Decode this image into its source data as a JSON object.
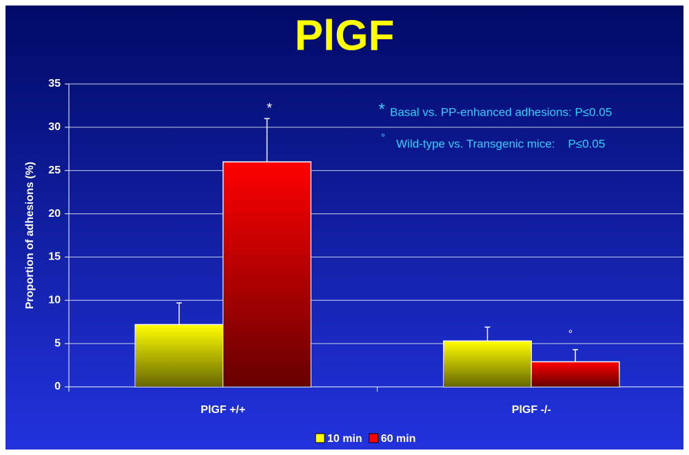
{
  "chart_data": {
    "type": "bar",
    "title": "PlGF",
    "y_label": "Proportion of adhesions (%)",
    "categories": [
      "PlGF +/+",
      "PlGF -/-"
    ],
    "series": [
      {
        "name": "10 min",
        "color": "#ffff00",
        "values": [
          7.2,
          5.3
        ],
        "errors": [
          2.5,
          1.6
        ]
      },
      {
        "name": "60 min",
        "color": "#ff0000",
        "values": [
          26,
          2.9
        ],
        "errors": [
          5,
          1.4
        ]
      }
    ],
    "ylim": [
      0,
      35
    ],
    "yticks": [
      0,
      5,
      10,
      15,
      20,
      25,
      30,
      35
    ],
    "grid": true,
    "legend": "bottom",
    "annotations": [
      "*",
      "°",
      "*",
      "Basal vs. PP-enhanced adhesions: P≤0.05",
      "°",
      "Wild-type vs. Transgenic mice:    P≤0.05"
    ]
  }
}
